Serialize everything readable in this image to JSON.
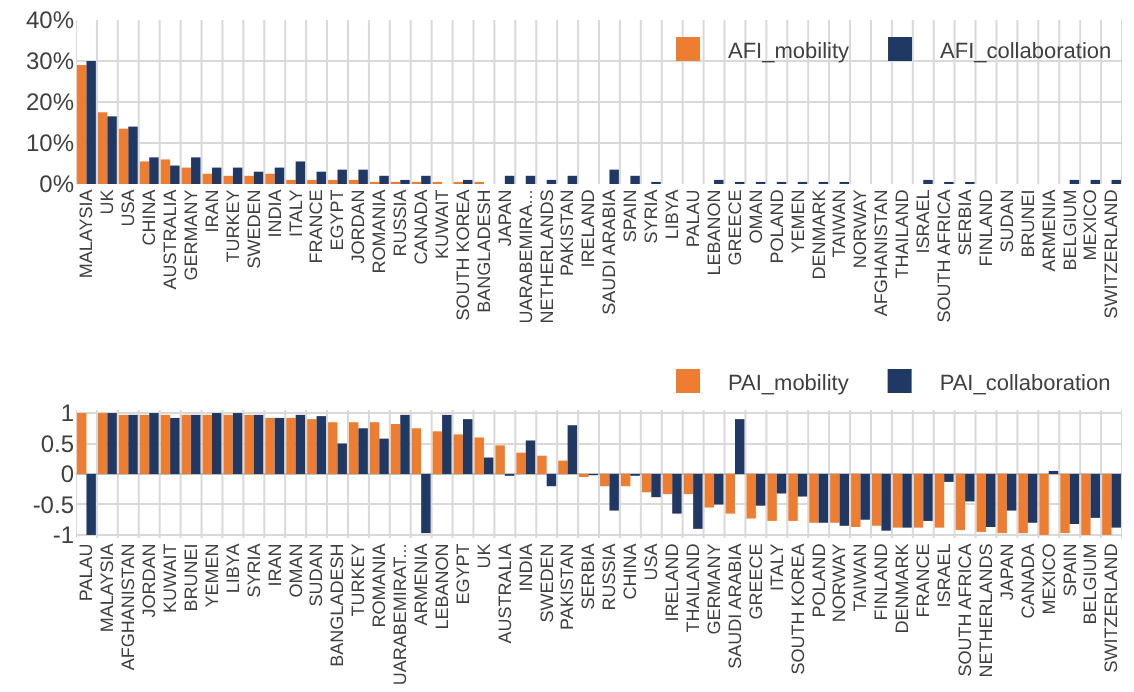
{
  "chart_data": [
    {
      "type": "bar",
      "categories": [
        "MALAYSIA",
        "UK",
        "USA",
        "CHINA",
        "AUSTRALIA",
        "GERMANY",
        "IRAN",
        "TURKEY",
        "SWEDEN",
        "INDIA",
        "ITALY",
        "FRANCE",
        "EGYPT",
        "JORDAN",
        "ROMANIA",
        "RUSSIA",
        "CANADA",
        "KUWAIT",
        "SOUTH KOREA",
        "BANGLADESH",
        "JAPAN",
        "UARABEMIRA...",
        "NETHERLANDS",
        "PAKISTAN",
        "IRELAND",
        "SAUDI ARABIA",
        "SPAIN",
        "SYRIA",
        "LIBYA",
        "PALAU",
        "LEBANON",
        "GREECE",
        "OMAN",
        "POLAND",
        "YEMEN",
        "DENMARK",
        "TAIWAN",
        "NORWAY",
        "AFGHANISTAN",
        "THAILAND",
        "ISRAEL",
        "SOUTH AFRICA",
        "SERBIA",
        "FINLAND",
        "SUDAN",
        "BRUNEI",
        "ARMENIA",
        "BELGIUM",
        "MEXICO",
        "SWITZERLAND"
      ],
      "series": [
        {
          "name": "AFI_mobility",
          "color": "#ed7d31",
          "values": [
            29,
            17.5,
            13.5,
            5.5,
            6,
            4,
            2.5,
            2,
            2,
            2.5,
            1,
            1,
            1,
            1,
            0.5,
            0.5,
            0.5,
            0.5,
            0.5,
            0.5,
            0,
            0,
            0,
            0,
            0,
            0,
            0,
            0,
            0,
            0,
            0,
            0,
            0,
            0,
            0,
            0,
            0,
            0,
            0,
            0,
            0,
            0,
            0,
            0,
            0,
            0,
            0,
            0,
            0,
            0
          ]
        },
        {
          "name": "AFI_collaboration",
          "color": "#1f3864",
          "values": [
            30,
            16.5,
            14,
            6.5,
            4.5,
            6.5,
            4,
            4,
            3,
            4,
            5.5,
            3,
            3.5,
            3.5,
            2,
            1,
            2,
            0,
            1,
            0,
            2,
            2,
            1,
            2,
            0,
            3.5,
            2,
            0.5,
            0,
            0,
            1,
            0.5,
            0.5,
            0.5,
            0.5,
            0.5,
            0.5,
            0,
            0,
            0,
            1,
            0.5,
            0.5,
            0,
            0,
            0,
            0,
            1,
            1,
            1
          ]
        }
      ],
      "ylim": [
        0,
        40
      ],
      "yticks": [
        {
          "value": 0,
          "label": "0%"
        },
        {
          "value": 10,
          "label": "10%"
        },
        {
          "value": 20,
          "label": "20%"
        },
        {
          "value": 30,
          "label": "30%"
        },
        {
          "value": 40,
          "label": "40%"
        }
      ],
      "grid": true,
      "legend": "top right"
    },
    {
      "type": "bar",
      "categories": [
        "PALAU",
        "MALAYSIA",
        "AFGHANISTAN",
        "JORDAN",
        "KUWAIT",
        "BRUNEI",
        "YEMEN",
        "LIBYA",
        "SYRIA",
        "IRAN",
        "OMAN",
        "SUDAN",
        "BANGLADESH",
        "TURKEY",
        "ROMANIA",
        "UARABEMIRAT...",
        "ARMENIA",
        "LEBANON",
        "EGYPT",
        "UK",
        "AUSTRALIA",
        "INDIA",
        "SWEDEN",
        "PAKISTAN",
        "SERBIA",
        "RUSSIA",
        "CHINA",
        "USA",
        "IRELAND",
        "THAILAND",
        "GERMANY",
        "SAUDI ARABIA",
        "GREECE",
        "ITALY",
        "SOUTH KOREA",
        "POLAND",
        "NORWAY",
        "TAIWAN",
        "FINLAND",
        "DENMARK",
        "FRANCE",
        "ISRAEL",
        "SOUTH AFRICA",
        "NETHERLANDS",
        "JAPAN",
        "CANADA",
        "MEXICO",
        "SPAIN",
        "BELGIUM",
        "SWITZERLAND"
      ],
      "series": [
        {
          "name": "PAI_mobility",
          "color": "#ed7d31",
          "values": [
            1,
            1,
            0.97,
            0.97,
            0.97,
            0.97,
            0.97,
            0.97,
            0.97,
            0.92,
            0.92,
            0.9,
            0.85,
            0.85,
            0.85,
            0.82,
            0.75,
            0.7,
            0.65,
            0.6,
            0.47,
            0.35,
            0.3,
            0.22,
            -0.05,
            -0.2,
            -0.2,
            -0.3,
            -0.33,
            -0.33,
            -0.55,
            -0.65,
            -0.73,
            -0.77,
            -0.77,
            -0.8,
            -0.8,
            -0.87,
            -0.85,
            -0.88,
            -0.88,
            -0.88,
            -0.92,
            -0.95,
            -0.97,
            -0.97,
            -1,
            -0.97,
            -1,
            -1
          ]
        },
        {
          "name": "PAI_collaboration",
          "color": "#1f3864",
          "values": [
            -1,
            1,
            0.97,
            1,
            0.92,
            0.97,
            1,
            1,
            0.97,
            0.92,
            0.97,
            0.95,
            0.5,
            0.75,
            0.58,
            0.97,
            -0.97,
            0.97,
            0.9,
            0.27,
            -0.03,
            0.55,
            -0.2,
            0.8,
            -0.02,
            -0.6,
            -0.03,
            -0.38,
            -0.65,
            -0.9,
            -0.5,
            0.9,
            -0.52,
            -0.32,
            -0.37,
            -0.8,
            -0.85,
            -0.75,
            -0.93,
            -0.88,
            -0.77,
            -0.13,
            -0.45,
            -0.87,
            -0.6,
            -0.8,
            0.05,
            -0.82,
            -0.72,
            -0.88
          ]
        }
      ],
      "ylim": [
        -1.05,
        1.05
      ],
      "yticks": [
        -1,
        -0.5,
        0,
        0.5,
        1
      ],
      "grid": true,
      "legend": "top right"
    }
  ]
}
